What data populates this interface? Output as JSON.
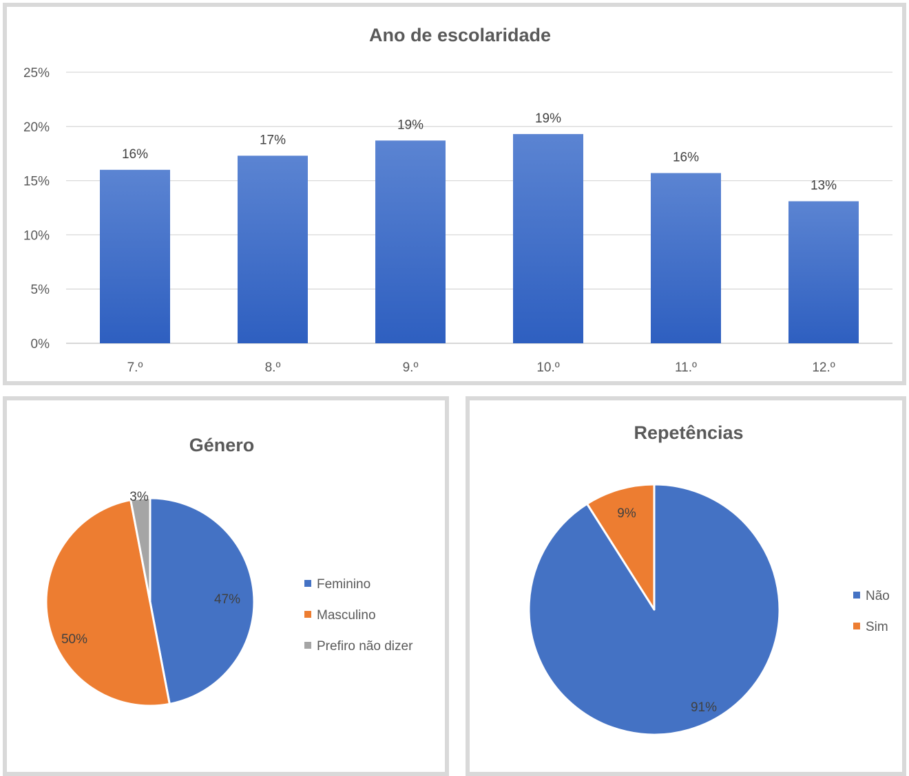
{
  "chart_data": [
    {
      "type": "bar",
      "title": "Ano de escolaridade",
      "categories": [
        "7.º",
        "8.º",
        "9.º",
        "10.º",
        "11.º",
        "12.º"
      ],
      "values": [
        16.0,
        17.3,
        18.7,
        19.3,
        15.7,
        13.1
      ],
      "data_labels": [
        "16%",
        "17%",
        "19%",
        "19%",
        "16%",
        "13%"
      ],
      "y_ticks": [
        "0%",
        "5%",
        "10%",
        "15%",
        "20%",
        "25%"
      ],
      "ylim": [
        0,
        25
      ],
      "grid": true,
      "color": "#4472c4"
    },
    {
      "type": "pie",
      "title": "Género",
      "slices": [
        {
          "label": "Feminino",
          "value": 47,
          "display": "47%",
          "color": "#4472c4"
        },
        {
          "label": "Masculino",
          "value": 50,
          "display": "50%",
          "color": "#ed7d31"
        },
        {
          "label": "Prefiro não dizer",
          "value": 3,
          "display": "3%",
          "color": "#a5a5a5"
        }
      ],
      "legend": "right"
    },
    {
      "type": "pie",
      "title": "Repetências",
      "slices": [
        {
          "label": "Não",
          "value": 91,
          "display": "91%",
          "color": "#4472c4"
        },
        {
          "label": "Sim",
          "value": 9,
          "display": "9%",
          "color": "#ed7d31"
        }
      ],
      "legend": "right"
    }
  ]
}
